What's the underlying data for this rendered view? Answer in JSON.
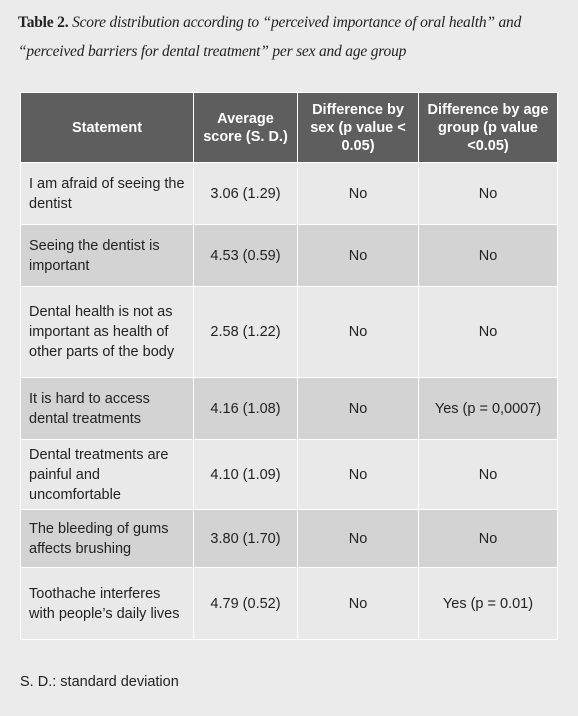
{
  "title": {
    "label": "Table 2.",
    "text": "Score distribution according to “perceived importance of oral health” and “perceived barriers for dental treatment” per sex and age group"
  },
  "table": {
    "header": [
      "Statement",
      "Average score (S. D.)",
      "Difference by sex (p value < 0.05)",
      "Difference by age group (p value <0.05)"
    ],
    "rows": [
      [
        "I am afraid of seeing the dentist",
        "3.06 (1.29)",
        "No",
        "No"
      ],
      [
        "Seeing the dentist is important",
        "4.53 (0.59)",
        "No",
        "No"
      ],
      [
        "Dental health is not as important as health of other parts of the body",
        "2.58 (1.22)",
        "No",
        "No"
      ],
      [
        "It is hard to access dental treatments",
        "4.16 (1.08)",
        "No",
        "Yes (p = 0,0007)"
      ],
      [
        "Dental treatments are painful and uncomfortable",
        "4.10 (1.09)",
        "No",
        "No"
      ],
      [
        "The bleeding of gums affects brushing",
        "3.80 (1.70)",
        "No",
        "No"
      ],
      [
        "Toothache interferes with people’s daily lives",
        "4.79 (0.52)",
        "No",
        "Yes (p = 0.01)"
      ]
    ]
  },
  "footnote": "S. D.: standard deviation"
}
